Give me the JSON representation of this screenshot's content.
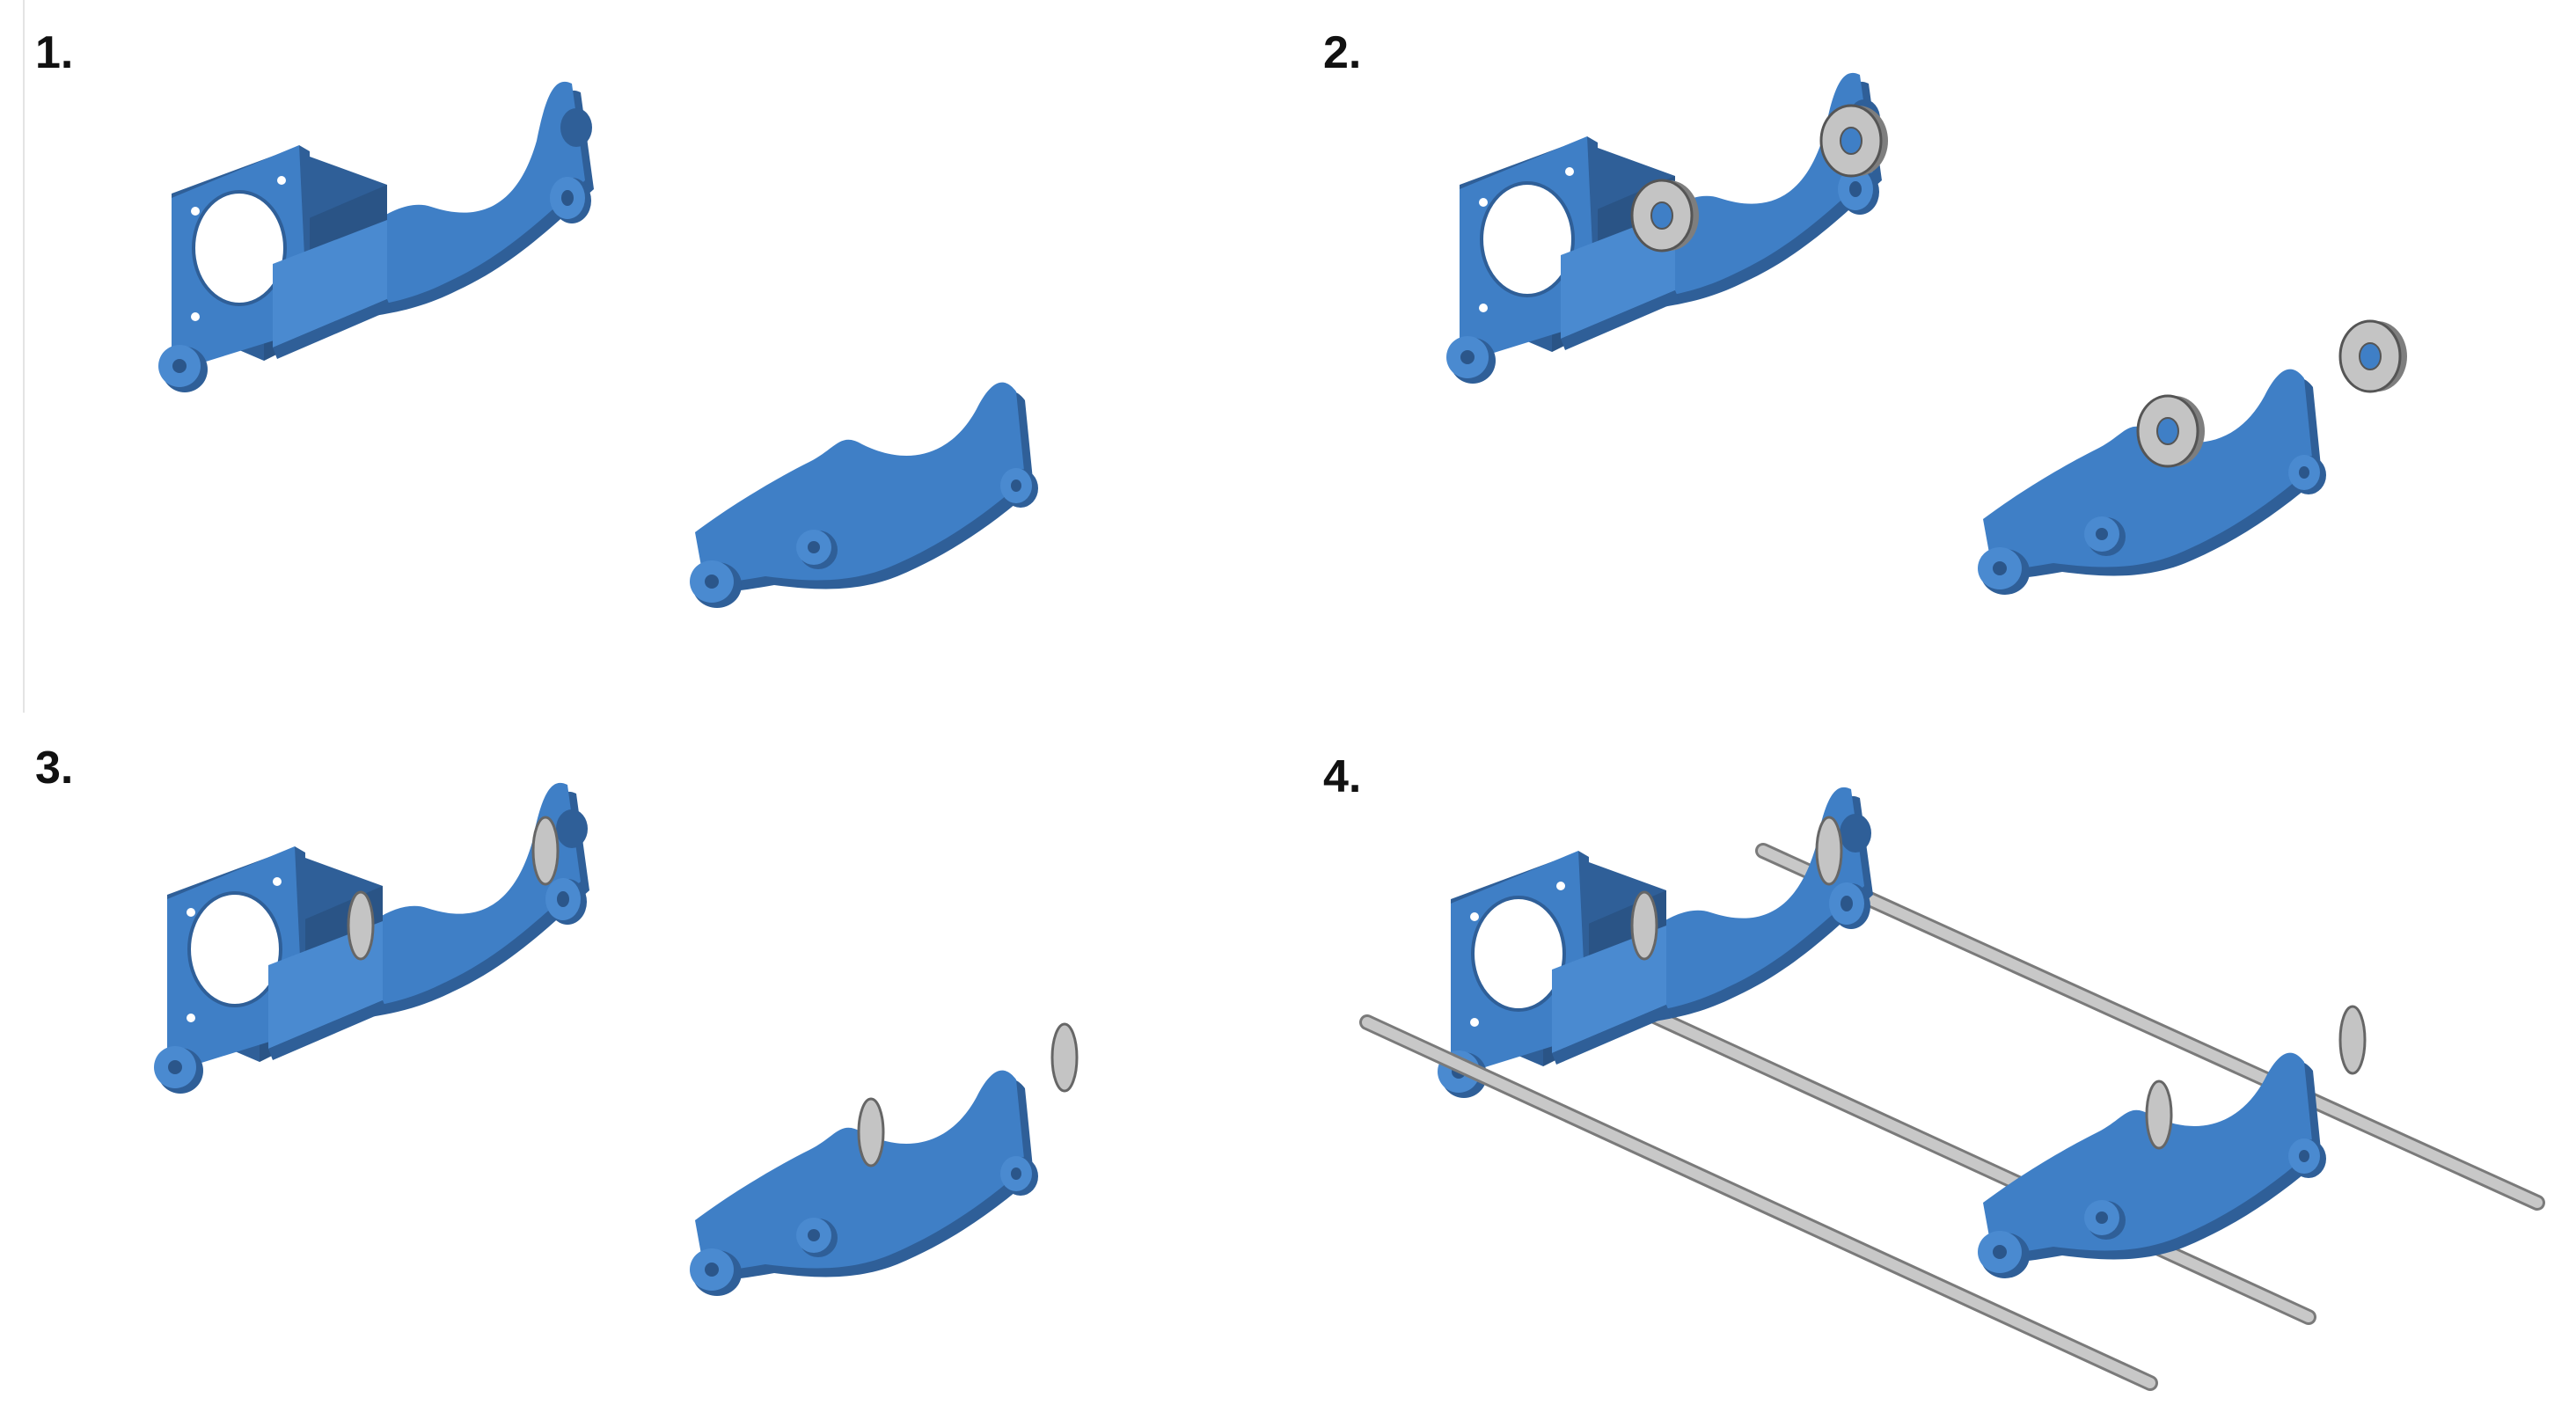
{
  "colors": {
    "part": "#3f7fc6",
    "part_dark": "#2f5f98",
    "part_light": "#5b97d8",
    "bearing": "#c4c4c4",
    "bearing_dark": "#7e7e7e",
    "rod": "#b9b9b9"
  },
  "steps": [
    {
      "label": "1.",
      "bearings": false,
      "installed": false,
      "rods": false
    },
    {
      "label": "2.",
      "bearings": true,
      "installed": false,
      "rods": false
    },
    {
      "label": "3.",
      "bearings": false,
      "installed": true,
      "rods": false
    },
    {
      "label": "4.",
      "bearings": false,
      "installed": true,
      "rods": true
    }
  ]
}
